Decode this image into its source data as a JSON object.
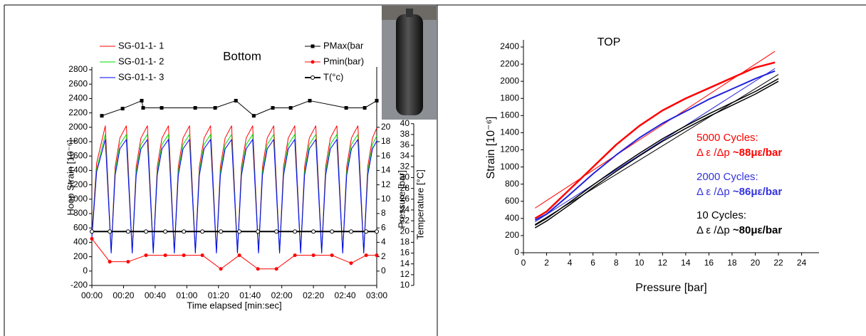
{
  "chart_data": [
    {
      "type": "line",
      "title": "Bottom",
      "xlabel": "Time elapsed [min:sec]",
      "ylabel": "Hoop Strain [10⁻⁶]",
      "y2label": "Pressure [bar]",
      "y3label": "Temperature [°C]",
      "xlim": [
        0,
        180
      ],
      "xticks": [
        {
          "value": 0,
          "label": "00:00"
        },
        {
          "value": 20,
          "label": "00:20"
        },
        {
          "value": 40,
          "label": "00:40"
        },
        {
          "value": 60,
          "label": "01:00"
        },
        {
          "value": 80,
          "label": "01:20"
        },
        {
          "value": 100,
          "label": "01:40"
        },
        {
          "value": 120,
          "label": "02:00"
        },
        {
          "value": 140,
          "label": "02:20"
        },
        {
          "value": 160,
          "label": "02:40"
        },
        {
          "value": 180,
          "label": "03:00"
        }
      ],
      "ylim": [
        -200,
        2800
      ],
      "yticks": [
        -200,
        0,
        200,
        400,
        600,
        800,
        1000,
        1200,
        1400,
        1600,
        1800,
        2000,
        2200,
        2400,
        2600,
        2800
      ],
      "y2lim": [
        -2,
        28
      ],
      "y2ticks": [
        0,
        2,
        4,
        6,
        8,
        10,
        12,
        14,
        16,
        18,
        20
      ],
      "y3lim": [
        10,
        50
      ],
      "y3ticks": [
        10,
        12,
        14,
        16,
        18,
        20,
        22,
        24,
        26,
        28,
        30,
        32,
        34,
        36,
        38,
        40
      ],
      "series": [
        {
          "name": "SG-01-1- 1",
          "color": "#ff0000",
          "width": 1,
          "x": [
            0,
            3,
            8.5,
            12.2,
            14.7,
            17.7,
            21.8,
            25.5,
            28,
            31,
            35.1,
            38.8,
            41.3,
            44.3,
            48.4,
            52.1,
            54.6,
            57.6,
            61.7,
            65.4,
            67.9,
            70.9,
            75,
            78.7,
            81.2,
            84.2,
            88.3,
            92,
            94.5,
            97.5,
            101.6,
            105.3,
            107.8,
            110.8,
            114.9,
            118.6,
            121.1,
            124.1,
            128.2,
            131.9,
            134.4,
            137.4,
            141.5,
            145.2,
            147.7,
            150.7,
            154.8,
            158.5,
            161,
            164,
            168.1,
            171.8,
            174.3,
            177.3,
            180
          ],
          "values": [
            500,
            1500,
            2020,
            270,
            1450,
            1850,
            2020,
            270,
            1450,
            1850,
            2020,
            270,
            1450,
            1850,
            2020,
            270,
            1450,
            1850,
            2020,
            270,
            1450,
            1850,
            2020,
            270,
            1450,
            1850,
            2020,
            270,
            1450,
            1850,
            2020,
            270,
            1450,
            1850,
            2020,
            270,
            1450,
            1850,
            2020,
            270,
            1450,
            1850,
            2020,
            270,
            1450,
            1850,
            2020,
            270,
            1450,
            1850,
            2020,
            270,
            1450,
            1850,
            1990
          ]
        },
        {
          "name": "SG-01-1- 2",
          "color": "#00dd00",
          "width": 1,
          "x": [
            0,
            3,
            8.5,
            12.2,
            14.7,
            17.7,
            21.8,
            25.5,
            28,
            31,
            35.1,
            38.8,
            41.3,
            44.3,
            48.4,
            52.1,
            54.6,
            57.6,
            61.7,
            65.4,
            67.9,
            70.9,
            75,
            78.7,
            81.2,
            84.2,
            88.3,
            92,
            94.5,
            97.5,
            101.6,
            105.3,
            107.8,
            110.8,
            114.9,
            118.6,
            121.1,
            124.1,
            128.2,
            131.9,
            134.4,
            137.4,
            141.5,
            145.2,
            147.7,
            150.7,
            154.8,
            158.5,
            161,
            164,
            168.1,
            171.8,
            174.3,
            177.3,
            180
          ],
          "values": [
            480,
            1420,
            1900,
            260,
            1380,
            1760,
            1900,
            260,
            1380,
            1760,
            1900,
            260,
            1380,
            1760,
            1900,
            260,
            1380,
            1760,
            1900,
            260,
            1380,
            1760,
            1900,
            260,
            1380,
            1760,
            1900,
            260,
            1380,
            1760,
            1900,
            260,
            1380,
            1760,
            1900,
            260,
            1380,
            1760,
            1900,
            260,
            1380,
            1760,
            1900,
            260,
            1380,
            1760,
            1900,
            260,
            1380,
            1760,
            1900,
            260,
            1380,
            1760,
            1880
          ]
        },
        {
          "name": "SG-01-1- 3",
          "color": "#0000ff",
          "width": 1,
          "x": [
            0,
            3,
            8.5,
            12.2,
            14.7,
            17.7,
            21.8,
            25.5,
            28,
            31,
            35.1,
            38.8,
            41.3,
            44.3,
            48.4,
            52.1,
            54.6,
            57.6,
            61.7,
            65.4,
            67.9,
            70.9,
            75,
            78.7,
            81.2,
            84.2,
            88.3,
            92,
            94.5,
            97.5,
            101.6,
            105.3,
            107.8,
            110.8,
            114.9,
            118.6,
            121.1,
            124.1,
            128.2,
            131.9,
            134.4,
            137.4,
            141.5,
            145.2,
            147.7,
            150.7,
            154.8,
            158.5,
            161,
            164,
            168.1,
            171.8,
            174.3,
            177.3,
            180
          ],
          "values": [
            460,
            1380,
            1830,
            250,
            1330,
            1700,
            1830,
            250,
            1330,
            1700,
            1830,
            250,
            1330,
            1700,
            1830,
            250,
            1330,
            1700,
            1830,
            250,
            1330,
            1700,
            1830,
            250,
            1330,
            1700,
            1830,
            250,
            1330,
            1700,
            1830,
            250,
            1330,
            1700,
            1830,
            250,
            1330,
            1700,
            1830,
            250,
            1330,
            1700,
            1830,
            250,
            1330,
            1700,
            1830,
            250,
            1330,
            1700,
            1830,
            250,
            1330,
            1700,
            1810
          ]
        },
        {
          "name": "PMax(bar",
          "color": "#000000",
          "width": 1,
          "axis": "y2",
          "marker": "square",
          "x": [
            6.3,
            19.4,
            31.5,
            32.4,
            44.1,
            65.3,
            77.9,
            91,
            102.3,
            114.3,
            125.6,
            137.7,
            160.7,
            172.4,
            180
          ],
          "values": [
            21.6,
            22.6,
            23.7,
            22.7,
            22.7,
            22.7,
            22.7,
            23.7,
            21.6,
            22.7,
            22.7,
            23.7,
            22.7,
            22.7,
            23.7
          ]
        },
        {
          "name": "Pmin(bar)",
          "color": "#ff0000",
          "width": 1,
          "axis": "y2",
          "marker": "dot",
          "x": [
            0,
            11.3,
            22.9,
            34.2,
            46.4,
            58.1,
            69.8,
            81.5,
            93.2,
            104.9,
            116.6,
            128.3,
            140,
            151.7,
            163.8,
            173.3,
            180
          ],
          "values": [
            4.5,
            1.3,
            1.3,
            2.2,
            2.2,
            2.2,
            2.2,
            0.3,
            2.2,
            0.3,
            0.3,
            2.2,
            2.2,
            2.2,
            1.1,
            2.2,
            2.2
          ]
        },
        {
          "name": "T(°c)",
          "color": "#000000",
          "width": 2,
          "axis": "y3",
          "marker": "open-circle",
          "x": [
            0,
            11.3,
            22.9,
            34.2,
            46.4,
            58.1,
            69.8,
            81.5,
            93.2,
            104.9,
            116.6,
            128.3,
            140,
            151.7,
            163.8,
            173.3,
            180
          ],
          "values": [
            20,
            20,
            20,
            20,
            20,
            20,
            20,
            20,
            20,
            20,
            20,
            20,
            20,
            20,
            20,
            20,
            20
          ]
        }
      ]
    },
    {
      "type": "line",
      "title": "TOP",
      "xlabel": "Pressure [bar]",
      "ylabel": "Strain [10⁻⁶]",
      "xlim": [
        0,
        25.5
      ],
      "xticks": [
        0,
        2,
        4,
        6,
        8,
        10,
        12,
        14,
        16,
        18,
        20,
        22,
        24
      ],
      "ylim": [
        0,
        2450
      ],
      "yticks": [
        0,
        200,
        400,
        600,
        800,
        1000,
        1200,
        1400,
        1600,
        1800,
        2000,
        2200,
        2400
      ],
      "series": [
        {
          "color": "#ff0000",
          "width": 2.5,
          "x": [
            1,
            2,
            4,
            6,
            8,
            10,
            12,
            14,
            16,
            18,
            20,
            21.7
          ],
          "values": [
            400,
            480,
            740,
            1000,
            1260,
            1480,
            1660,
            1800,
            1920,
            2040,
            2160,
            2220
          ]
        },
        {
          "color": "#ff0000",
          "width": 1,
          "x": [
            1,
            21.7
          ],
          "values": [
            520,
            2350
          ]
        },
        {
          "color": "#2222dd",
          "width": 2,
          "x": [
            1,
            2,
            4,
            6,
            8,
            10,
            12,
            14,
            16,
            18,
            20,
            21.7
          ],
          "values": [
            380,
            450,
            680,
            920,
            1140,
            1340,
            1510,
            1650,
            1790,
            1910,
            2030,
            2120
          ]
        },
        {
          "color": "#2222dd",
          "width": 1,
          "x": [
            1,
            21.7
          ],
          "values": [
            360,
            2150
          ]
        },
        {
          "color": "#000000",
          "width": 1.5,
          "x": [
            1,
            2,
            4,
            6,
            8,
            10,
            12,
            14,
            16,
            18,
            20,
            22
          ],
          "values": [
            290,
            370,
            560,
            760,
            950,
            1130,
            1300,
            1450,
            1590,
            1720,
            1850,
            2000
          ]
        },
        {
          "color": "#000000",
          "width": 1.5,
          "x": [
            1,
            2,
            4,
            6,
            8,
            10,
            12,
            14,
            16,
            18,
            20,
            22
          ],
          "values": [
            320,
            400,
            590,
            790,
            980,
            1160,
            1330,
            1480,
            1620,
            1750,
            1880,
            2030
          ]
        },
        {
          "color": "#000000",
          "width": 1,
          "x": [
            1,
            22
          ],
          "values": [
            330,
            2080
          ]
        }
      ],
      "annotations": [
        {
          "text": "5000 Cycles:",
          "formula": "Δ ε /Δp ",
          "value": "~88με/bar",
          "color": "#ff0000"
        },
        {
          "text": "2000 Cycles:",
          "formula": "Δ ε /Δp ",
          "value": "~86με/bar",
          "color": "#3333dd"
        },
        {
          "text": "10 Cycles:",
          "formula": "Δ ε /Δp ",
          "value": "~80με/bar",
          "color": "#000000"
        }
      ]
    }
  ]
}
